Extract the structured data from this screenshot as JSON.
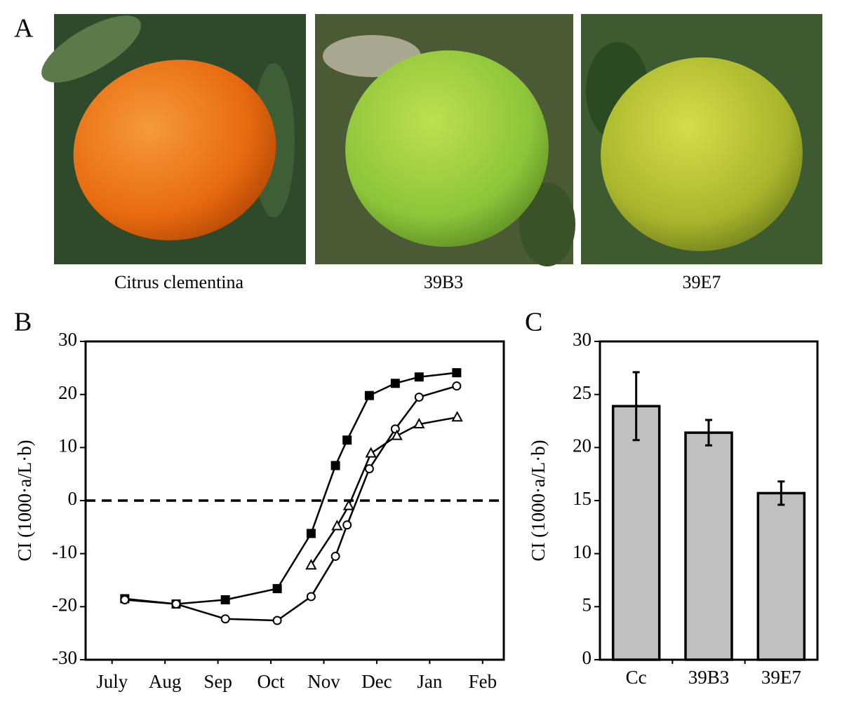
{
  "panel_a": {
    "label": "A",
    "captions": [
      "Citrus clementina",
      "39B3",
      "39E7"
    ]
  },
  "chart_data": [
    {
      "type": "line",
      "label": "B",
      "ylabel": "CI (1000·a/L·b)",
      "xlim": [
        0,
        7.9
      ],
      "xticks": [
        {
          "value": 0.5,
          "label": "July"
        },
        {
          "value": 1.5,
          "label": "Aug"
        },
        {
          "value": 2.5,
          "label": "Sep"
        },
        {
          "value": 3.5,
          "label": "Oct"
        },
        {
          "value": 4.5,
          "label": "Nov"
        },
        {
          "value": 5.5,
          "label": "Dec"
        },
        {
          "value": 6.5,
          "label": "Jan"
        },
        {
          "value": 7.5,
          "label": "Feb"
        }
      ],
      "ylim": [
        -30,
        30
      ],
      "yticks": [
        -30,
        -20,
        -10,
        0,
        10,
        20,
        30
      ],
      "zero_line": true,
      "series": [
        {
          "marker": "square",
          "color": "#000000",
          "x": [
            0.74,
            1.71,
            2.64,
            3.62,
            4.26,
            4.72,
            4.94,
            5.36,
            5.85,
            6.3,
            7.01
          ],
          "values": [
            -18.5,
            -19.5,
            -18.7,
            -16.6,
            -6.2,
            6.6,
            11.4,
            19.8,
            22.1,
            23.3,
            24.1
          ]
        },
        {
          "marker": "circle",
          "color": "#000000",
          "x": [
            0.74,
            1.71,
            2.64,
            3.62,
            4.26,
            4.72,
            4.94,
            5.36,
            5.85,
            6.3,
            7.01
          ],
          "values": [
            -18.7,
            -19.5,
            -22.3,
            -22.6,
            -18.1,
            -10.5,
            -4.6,
            6.0,
            13.5,
            19.5,
            21.6
          ]
        },
        {
          "marker": "triangle",
          "color": "#000000",
          "x": [
            4.26,
            4.75,
            4.97,
            5.39,
            5.88,
            6.3,
            7.02
          ],
          "values": [
            -12.2,
            -4.8,
            -1.0,
            8.9,
            12.2,
            14.4,
            15.7
          ]
        }
      ]
    },
    {
      "type": "bar",
      "label": "C",
      "ylabel": "CI (1000·a/L·b)",
      "categories": [
        "Cc",
        "39B3",
        "39E7"
      ],
      "values": [
        23.9,
        21.4,
        15.7
      ],
      "errors": [
        3.2,
        1.2,
        1.1
      ],
      "color": "#c0c0c0",
      "ylim": [
        0,
        30
      ],
      "yticks": [
        0,
        5,
        10,
        15,
        20,
        25,
        30
      ]
    }
  ]
}
